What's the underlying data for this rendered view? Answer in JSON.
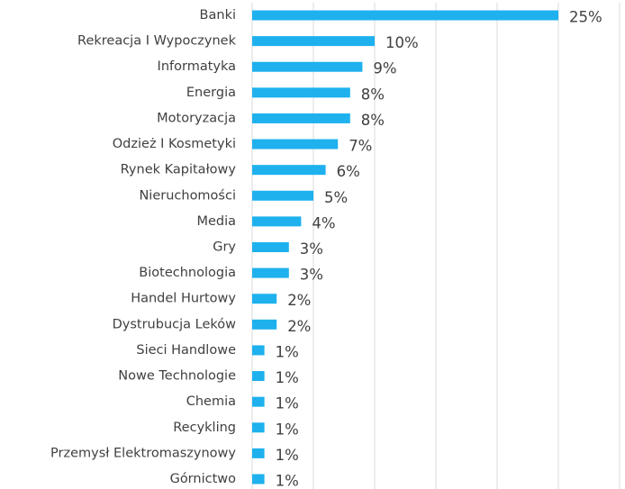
{
  "chart_data": {
    "type": "hbar",
    "categories": [
      "Banki",
      "Rekreacja I Wypoczynek",
      "Informatyka",
      "Energia",
      "Motoryzacja",
      "Odzież I Kosmetyki",
      "Rynek Kapitałowy",
      "Nieruchomości",
      "Media",
      "Gry",
      "Biotechnologia",
      "Handel Hurtowy",
      "Dystrubucja Leków",
      "Sieci Handlowe",
      "Nowe Technologie",
      "Chemia",
      "Recykling",
      "Przemysł Elektromaszynowy",
      "Górnictwo"
    ],
    "values": [
      25,
      10,
      9,
      8,
      8,
      7,
      6,
      5,
      4,
      3,
      3,
      2,
      2,
      1,
      1,
      1,
      1,
      1,
      1
    ],
    "value_labels": [
      "25%",
      "10%",
      "9%",
      "8%",
      "8%",
      "7%",
      "6%",
      "5%",
      "4%",
      "3%",
      "3%",
      "2%",
      "2%",
      "1%",
      "1%",
      "1%",
      "1%",
      "1%",
      "1%"
    ],
    "color": "#1eb1ee",
    "xlim": [
      0,
      30
    ],
    "xticks": [
      0,
      5,
      10,
      15,
      20,
      25,
      30
    ],
    "grid": true
  }
}
